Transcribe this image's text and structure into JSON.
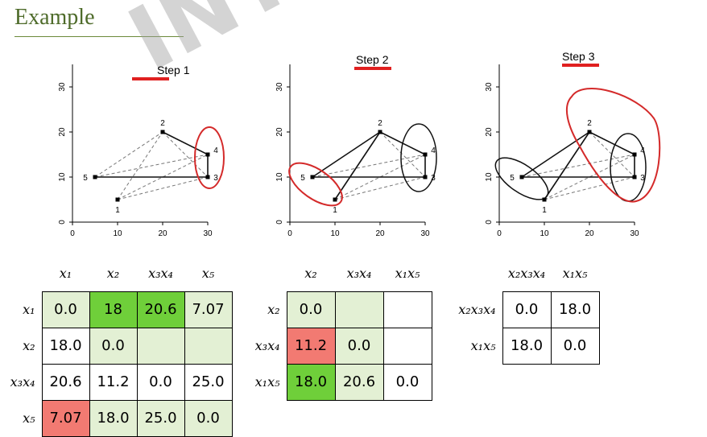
{
  "title": "Example",
  "plots": [
    {
      "step_label": "Step 1",
      "y_ticks": [
        "0",
        "10",
        "20",
        "30"
      ],
      "x_ticks": [
        "0",
        "10",
        "20",
        "30"
      ],
      "node_labels": [
        "1",
        "2",
        "3",
        "4",
        "5"
      ]
    },
    {
      "step_label": "Step 2",
      "y_ticks": [
        "0",
        "10",
        "20",
        "30"
      ],
      "x_ticks": [
        "0",
        "10",
        "20",
        "30"
      ],
      "node_labels": [
        "1",
        "2",
        "3",
        "4",
        "5"
      ]
    },
    {
      "step_label": "Step 3",
      "y_ticks": [
        "0",
        "10",
        "20",
        "30"
      ],
      "x_ticks": [
        "0",
        "10",
        "20",
        "30"
      ],
      "node_labels": [
        "1",
        "2",
        "3",
        "4",
        "5"
      ]
    }
  ],
  "nodes": {
    "1": [
      10,
      5
    ],
    "2": [
      20,
      20
    ],
    "3": [
      30,
      10
    ],
    "4": [
      30,
      15
    ],
    "5": [
      5,
      10
    ]
  },
  "matrix1": {
    "cols": [
      "x₁",
      "x₂",
      "x₃x₄",
      "x₅"
    ],
    "rows": [
      "x₁",
      "x₂",
      "x₃x₄",
      "x₅"
    ],
    "cells": [
      [
        "0.0",
        "18",
        "20.6",
        "7.07"
      ],
      [
        "18.0",
        "0.0",
        "",
        ""
      ],
      [
        "20.6",
        "11.2",
        "0.0",
        "25.0"
      ],
      [
        "7.07",
        "18.0",
        "25.0",
        "0.0"
      ]
    ]
  },
  "matrix2": {
    "cols": [
      "x₂",
      "x₃x₄",
      "x₁x₅"
    ],
    "rows": [
      "x₂",
      "x₃x₄",
      "x₁x₅"
    ],
    "cells": [
      [
        "0.0",
        "",
        ""
      ],
      [
        "11.2",
        "0.0",
        ""
      ],
      [
        "18.0",
        "20.6",
        "0.0"
      ]
    ]
  },
  "matrix3": {
    "cols": [
      "x₂x₃x₄",
      "x₁x₅"
    ],
    "rows": [
      "x₂x₃x₄",
      "x₁x₅"
    ],
    "cells": [
      [
        "0.0",
        "18.0"
      ],
      [
        "18.0",
        "0.0"
      ]
    ]
  },
  "colors": {
    "title": "#4e6b2a",
    "step_underline": "#e02020",
    "cluster_red": "#d42a2a",
    "cell_light_green": "#e3f0d4",
    "cell_green": "#6fcf3a",
    "cell_red": "#f27a72"
  }
}
